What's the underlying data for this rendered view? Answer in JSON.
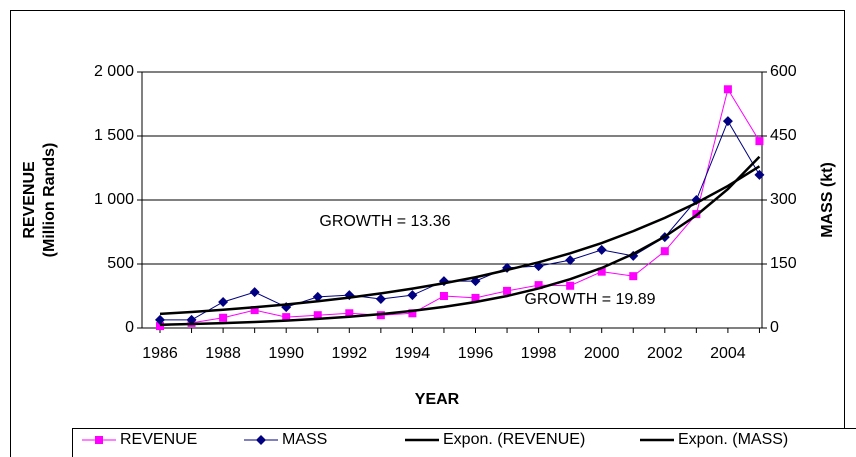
{
  "chart_data": {
    "type": "line",
    "x_label": "YEAR",
    "y_label": [
      "REVENUE",
      "(Million Rands)"
    ],
    "y2_label": "MASS (kt)",
    "categories": [
      "1986",
      null,
      "1988",
      null,
      "1990",
      null,
      "1992",
      null,
      "1994",
      null,
      "1996",
      null,
      "1998",
      null,
      "2000",
      null,
      "2002",
      null,
      "2004",
      null
    ],
    "ylim": [
      0,
      2000
    ],
    "yticks": [
      0,
      500,
      {
        "value": 1000,
        "label": "1 000"
      },
      {
        "value": 1500,
        "label": "1 500"
      },
      {
        "value": 2000,
        "label": "2 000"
      }
    ],
    "y2lim": [
      0,
      600
    ],
    "y2ticks": [
      0,
      150,
      300,
      450,
      600
    ],
    "grid": true,
    "legend": "bottom",
    "series": [
      {
        "name": "REVENUE",
        "color": "#ff00ff",
        "marker": "square",
        "values": [
          15,
          40,
          80,
          140,
          85,
          100,
          115,
          100,
          115,
          250,
          235,
          290,
          335,
          330,
          440,
          405,
          600,
          890,
          1865,
          1460
        ]
      },
      {
        "name": "MASS",
        "color": "#000080",
        "marker": "diamond",
        "axis": "y2",
        "values": [
          19,
          19,
          61,
          84,
          49,
          73,
          77,
          68,
          77,
          110,
          110,
          141,
          145,
          159,
          183,
          169,
          213,
          300,
          485,
          359
        ]
      },
      {
        "name": "Expon. (REVENUE)",
        "color": "#000000",
        "marker": "none",
        "values": [
          25,
          31,
          38,
          47,
          58,
          71,
          88,
          108,
          134,
          165,
          203,
          250,
          309,
          381,
          469,
          579,
          714,
          880,
          1085,
          1338
        ]
      },
      {
        "name": "Expon. (MASS)",
        "color": "#000000",
        "marker": "none",
        "axis": "y2",
        "values": [
          33,
          37.5,
          42.7,
          48.5,
          55.2,
          62.7,
          71.3,
          81.1,
          92.2,
          104.8,
          119,
          136,
          154,
          175,
          199,
          227,
          258,
          293,
          333,
          379
        ]
      }
    ],
    "annotations": [
      "GROWTH = 13.36",
      "GROWTH = 19.89"
    ]
  }
}
